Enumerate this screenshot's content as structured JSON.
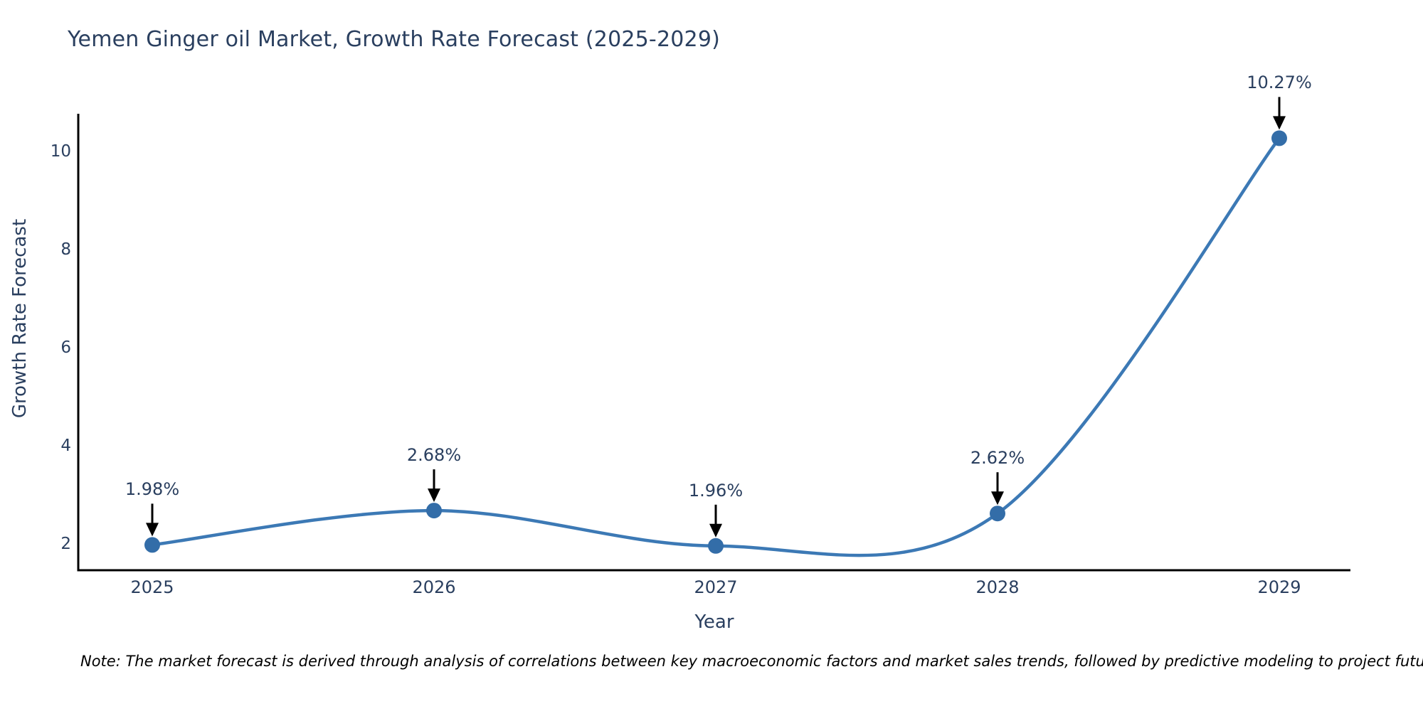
{
  "title": "Yemen Ginger oil Market, Growth Rate Forecast (2025-2029)",
  "note": "Note: The market forecast is derived through analysis of correlations between key macroeconomic factors and market sales trends, followed by predictive modeling to project future sales",
  "colors": {
    "text": "#2a3f5f",
    "line": "#3c79b5",
    "marker": "#336da8",
    "axis": "#000000",
    "arrow": "#000000",
    "background": "#ffffff"
  },
  "chart_data": {
    "type": "line",
    "title": "Yemen Ginger oil Market, Growth Rate Forecast (2025-2029)",
    "xlabel": "Year",
    "ylabel": "Growth Rate Forecast",
    "x": [
      2025,
      2026,
      2027,
      2028,
      2029
    ],
    "values": [
      1.98,
      2.68,
      1.96,
      2.62,
      10.27
    ],
    "point_labels": [
      "1.98%",
      "2.68%",
      "1.96%",
      "2.62%",
      "10.27%"
    ],
    "yticks": [
      2,
      4,
      6,
      8,
      10
    ],
    "ylim": [
      1.45,
      10.75
    ],
    "line_shape": "spline",
    "grid": false,
    "legend": false,
    "annotations_arrow": true
  }
}
